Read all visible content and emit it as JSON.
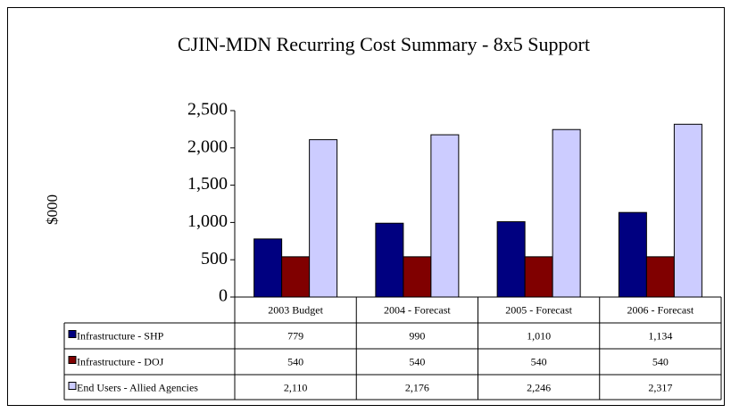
{
  "chart_data": {
    "type": "bar",
    "title": "CJIN-MDN Recurring Cost Summary - 8x5 Support",
    "y_label": "$000",
    "categories": [
      "2003 Budget",
      "2004 - Forecast",
      "2005 - Forecast",
      "2006 - Forecast"
    ],
    "series": [
      {
        "name": "Infrastructure - SHP",
        "color": "#000080",
        "values": [
          779,
          990,
          1010,
          1134
        ],
        "value_labels": [
          "779",
          "990",
          "1,010",
          "1,134"
        ]
      },
      {
        "name": "Infrastructure - DOJ",
        "color": "#800000",
        "values": [
          540,
          540,
          540,
          540
        ]
      },
      {
        "name": "End Users - Allied Agencies",
        "color": "#ccccff",
        "values": [
          2110,
          2176,
          2246,
          2317
        ],
        "value_labels": [
          "2,110",
          "2,176",
          "2,246",
          "2,317"
        ]
      }
    ],
    "ylim": [
      0,
      2500
    ],
    "yticks": [
      0,
      {
        "value": 500,
        "label": "500"
      },
      {
        "value": 1000,
        "label": "1,000"
      },
      {
        "value": 1500,
        "label": "1,500"
      },
      {
        "value": 2000,
        "label": "2,000"
      },
      {
        "value": 2500,
        "label": "2,500"
      }
    ],
    "grid": false,
    "data_table": true
  }
}
